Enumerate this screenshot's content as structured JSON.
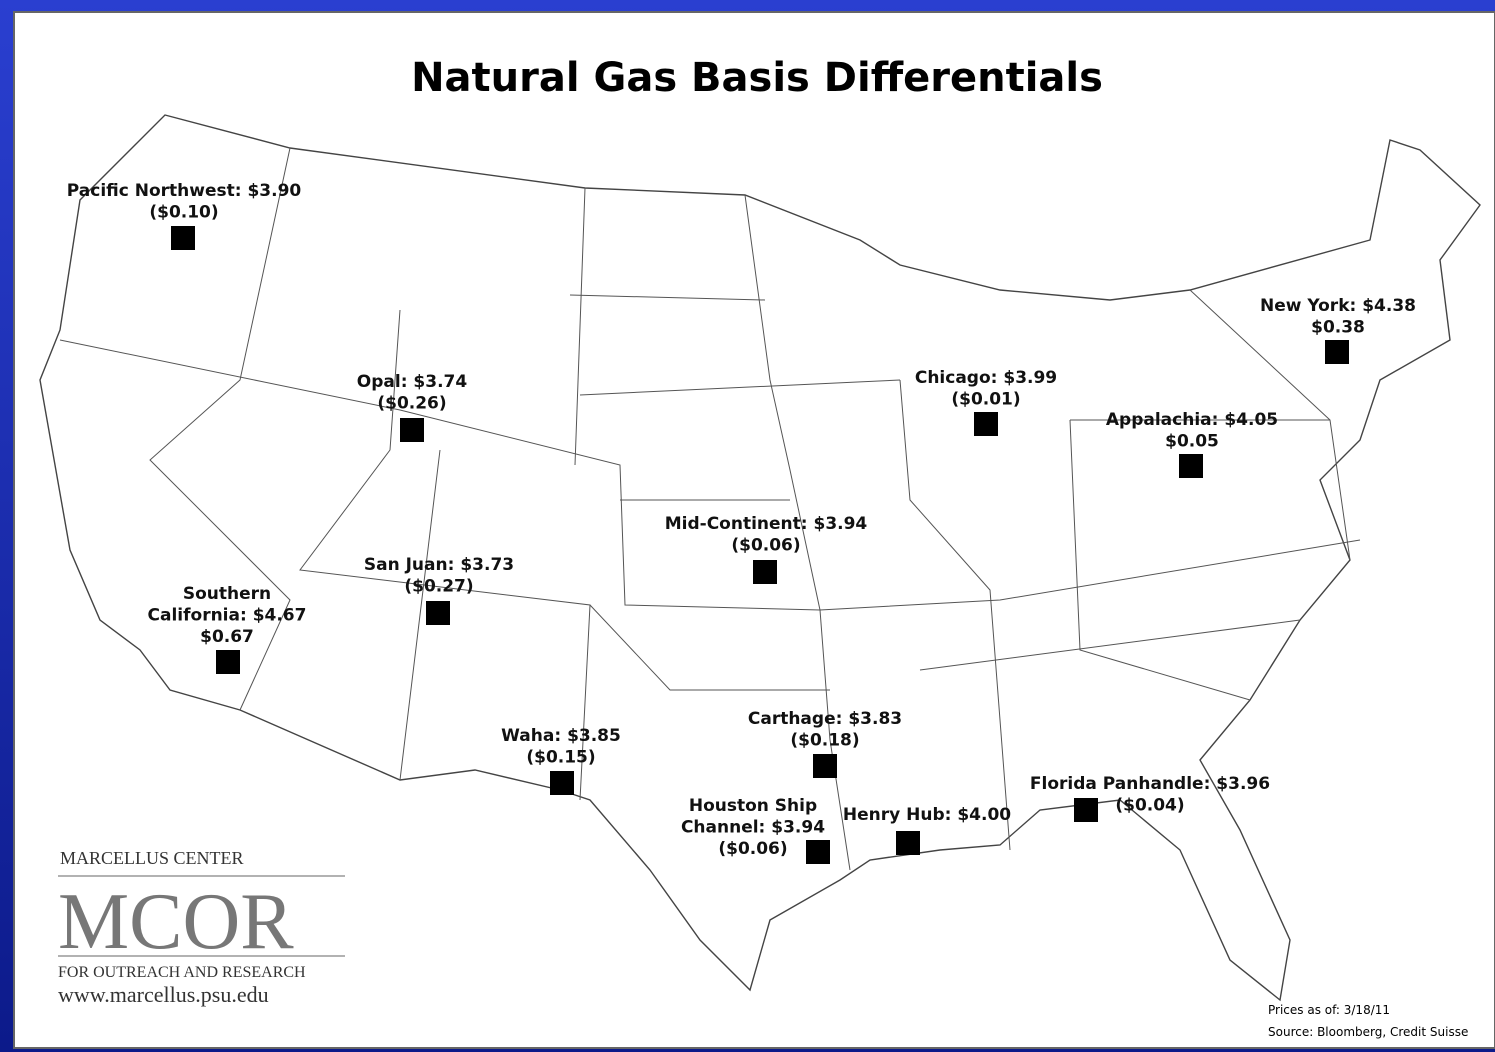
{
  "title": "Natural Gas Basis Differentials",
  "hubs": [
    {
      "lines": [
        "Pacific Northwest: $3.90",
        "($0.10)"
      ]
    },
    {
      "lines": [
        "Opal: $3.74",
        "($0.26)"
      ]
    },
    {
      "lines": [
        "Chicago: $3.99",
        "($0.01)"
      ]
    },
    {
      "lines": [
        "Appalachia: $4.05",
        "$0.05"
      ]
    },
    {
      "lines": [
        "New York: $4.38",
        "$0.38"
      ]
    },
    {
      "lines": [
        "Mid-Continent: $3.94",
        "($0.06)"
      ]
    },
    {
      "lines": [
        "San Juan: $3.73",
        "($0.27)"
      ]
    },
    {
      "lines": [
        "Southern",
        "California: $4.67",
        "$0.67"
      ]
    },
    {
      "lines": [
        "Waha: $3.85",
        "($0.15)"
      ]
    },
    {
      "lines": [
        "Carthage: $3.83",
        "($0.18)"
      ]
    },
    {
      "lines": [
        "Houston Ship",
        "Channel: $3.94",
        "($0.06)"
      ]
    },
    {
      "lines": [
        "Henry Hub: $4.00"
      ]
    },
    {
      "lines": [
        "Florida Panhandle: $3.96",
        "($0.04)"
      ]
    }
  ],
  "logo": {
    "top": "MARCELLUS CENTER",
    "name": "MCOR",
    "bottom": "FOR OUTREACH AND RESEARCH",
    "url": "www.marcellus.psu.edu"
  },
  "footnote": [
    "Prices as of: 3/18/11",
    "Source: Bloomberg, Credit Suisse"
  ]
}
